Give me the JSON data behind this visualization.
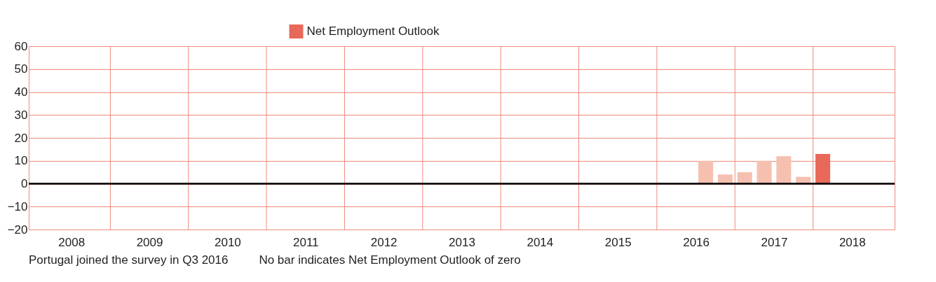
{
  "chart_data": {
    "type": "bar",
    "x": [
      2016.625,
      2016.875,
      2017.125,
      2017.375,
      2017.625,
      2017.875,
      2018.125
    ],
    "series": [
      {
        "name": "Net Employment Outlook",
        "color": "#e8695a",
        "values": [
          10,
          4,
          5,
          10,
          12,
          3,
          13
        ],
        "colors": [
          "#f6c0b1",
          "#f6c0b1",
          "#f6c0b1",
          "#f6c0b1",
          "#f6c0b1",
          "#f6c0b1",
          "#e8695a"
        ]
      }
    ],
    "xlim": [
      2008,
      2019
    ],
    "xticks": [
      {
        "value": 2008.5,
        "label": "2008"
      },
      {
        "value": 2009.5,
        "label": "2009"
      },
      {
        "value": 2010.5,
        "label": "2010"
      },
      {
        "value": 2011.5,
        "label": "2011"
      },
      {
        "value": 2012.5,
        "label": "2012"
      },
      {
        "value": 2013.5,
        "label": "2013"
      },
      {
        "value": 2014.5,
        "label": "2014"
      },
      {
        "value": 2015.5,
        "label": "2015"
      },
      {
        "value": 2016.5,
        "label": "2016"
      },
      {
        "value": 2017.5,
        "label": "2017"
      },
      {
        "value": 2018.5,
        "label": "2018"
      },
      {
        "value": 2009,
        "label": null
      },
      {
        "value": 2010,
        "label": null
      },
      {
        "value": 2011,
        "label": null
      },
      {
        "value": 2012,
        "label": null
      },
      {
        "value": 2013,
        "label": null
      },
      {
        "value": 2014,
        "label": null
      },
      {
        "value": 2015,
        "label": null
      },
      {
        "value": 2016,
        "label": null
      },
      {
        "value": 2017,
        "label": null
      },
      {
        "value": 2018,
        "label": null
      }
    ],
    "ylim": [
      -20,
      60
    ],
    "yticks": [
      -20,
      -10,
      0,
      10,
      20,
      30,
      40,
      50,
      60
    ],
    "grid": true,
    "legend": "top",
    "ref_lines": [
      {
        "axis": "y",
        "value": 0,
        "color": "#000000"
      }
    ],
    "annotations": [
      "Portugal joined the survey in Q3 2016",
      "No bar indicates Net Employment Outlook of zero"
    ]
  }
}
